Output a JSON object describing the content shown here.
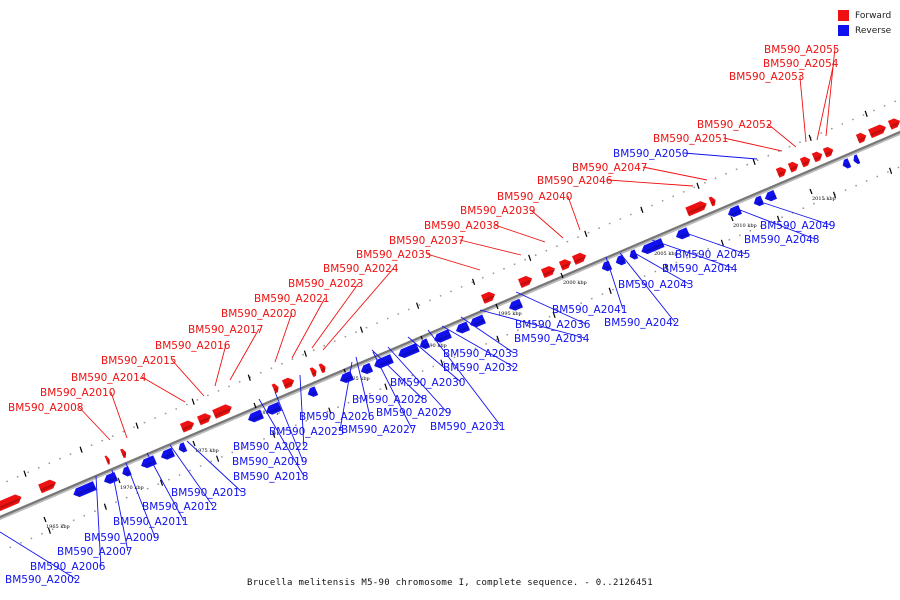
{
  "caption": "Brucella melitensis M5-90 chromosome I, complete sequence. - 0..2126451",
  "legend": [
    {
      "label": "Forward",
      "color": "#ee1111"
    },
    {
      "label": "Reverse",
      "color": "#1111ee"
    }
  ],
  "colors": {
    "forward": "#ee1111",
    "reverse": "#1111ee",
    "axis": "#777777"
  },
  "scale_labels": [
    "1965 kbp",
    "1970 kbp",
    "1975 kbp",
    "1980 kbp",
    "1985 kbp",
    "1990 kbp",
    "1995 kbp",
    "2000 kbp",
    "2005 kbp",
    "2010 kbp",
    "2015 kbp"
  ],
  "forward_labels": [
    "BM590_A2008",
    "BM590_A2010",
    "BM590_A2014",
    "BM590_A2015",
    "BM590_A2016",
    "BM590_A2017",
    "BM590_A2020",
    "BM590_A2021",
    "BM590_A2023",
    "BM590_A2024",
    "BM590_A2035",
    "BM590_A2037",
    "BM590_A2038",
    "BM590_A2039",
    "BM590_A2040",
    "BM590_A2046",
    "BM590_A2047",
    "BM590_A2051",
    "BM590_A2052",
    "BM590_A2053",
    "BM590_A2054",
    "BM590_A2055"
  ],
  "reverse_labels": [
    "BM590_A2002",
    "BM590_A2006",
    "BM590_A2007",
    "BM590_A2009",
    "BM590_A2011",
    "BM590_A2012",
    "BM590_A2013",
    "BM590_A2018",
    "BM590_A2019",
    "BM590_A2022",
    "BM590_A2025",
    "BM590_A2026",
    "BM590_A2027",
    "BM590_A2028",
    "BM590_A2029",
    "BM590_A2030",
    "BM590_A2031",
    "BM590_A2032",
    "BM590_A2033",
    "BM590_A2034",
    "BM590_A2036",
    "BM590_A2041",
    "BM590_A2042",
    "BM590_A2043",
    "BM590_A2044",
    "BM590_A2045",
    "BM590_A2048",
    "BM590_A2049",
    "BM590_A2050"
  ]
}
